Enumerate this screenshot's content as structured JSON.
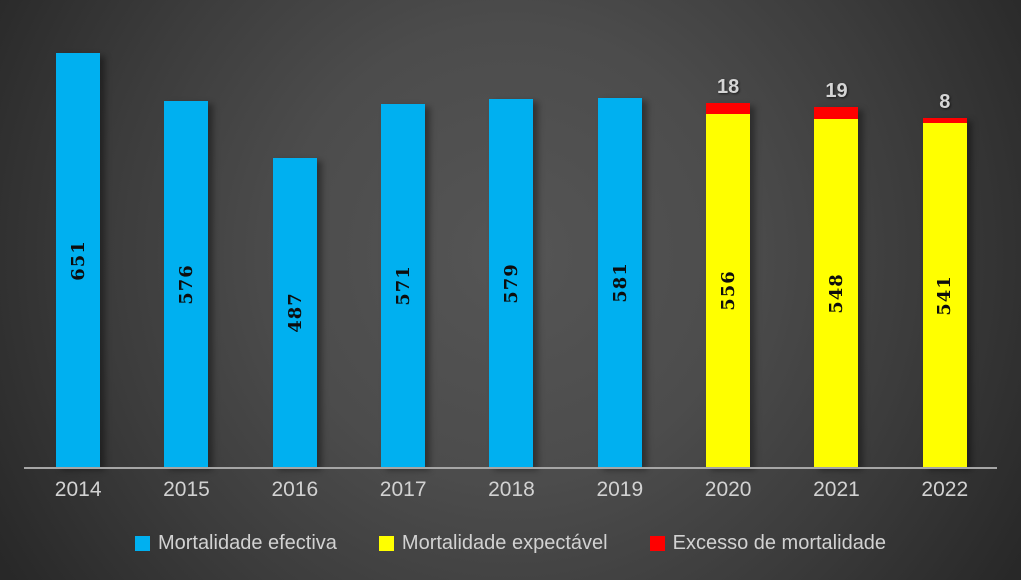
{
  "chart_style": {
    "background_center": "#555555",
    "background_edge": "#242424",
    "axis_line_color": "#A6A6A6",
    "tick_text_color": "#D2D2D2",
    "bar_value_text_color": "#0D0D0D",
    "excess_label_text_color": "#D5D5D5"
  },
  "chart_data": {
    "type": "bar",
    "stacked": true,
    "categories": [
      "2014",
      "2015",
      "2016",
      "2017",
      "2018",
      "2019",
      "2020",
      "2021",
      "2022"
    ],
    "series": [
      {
        "name": "Mortalidade efectiva",
        "color": "#00B0F0",
        "values": [
          651,
          576,
          487,
          571,
          579,
          581,
          null,
          null,
          null
        ],
        "label_style": "rotated-inside"
      },
      {
        "name": "Mortalidade expectável",
        "color": "#FFFF00",
        "values": [
          null,
          null,
          null,
          null,
          null,
          null,
          556,
          548,
          541
        ],
        "label_style": "rotated-inside"
      },
      {
        "name": "Excesso de mortalidade",
        "color": "#FF0000",
        "values": [
          null,
          null,
          null,
          null,
          null,
          null,
          18,
          19,
          8
        ],
        "label_style": "above-outside"
      }
    ],
    "ylim": [
      0,
      735
    ],
    "grid": false,
    "y_axis_visible": false,
    "x_axis_visible": true,
    "legend_position": "bottom"
  },
  "legend": {
    "items": [
      {
        "label": "Mortalidade efectiva",
        "color": "#00B0F0"
      },
      {
        "label": "Mortalidade expectável",
        "color": "#FFFF00"
      },
      {
        "label": "Excesso de mortalidade",
        "color": "#FF0000"
      }
    ]
  }
}
